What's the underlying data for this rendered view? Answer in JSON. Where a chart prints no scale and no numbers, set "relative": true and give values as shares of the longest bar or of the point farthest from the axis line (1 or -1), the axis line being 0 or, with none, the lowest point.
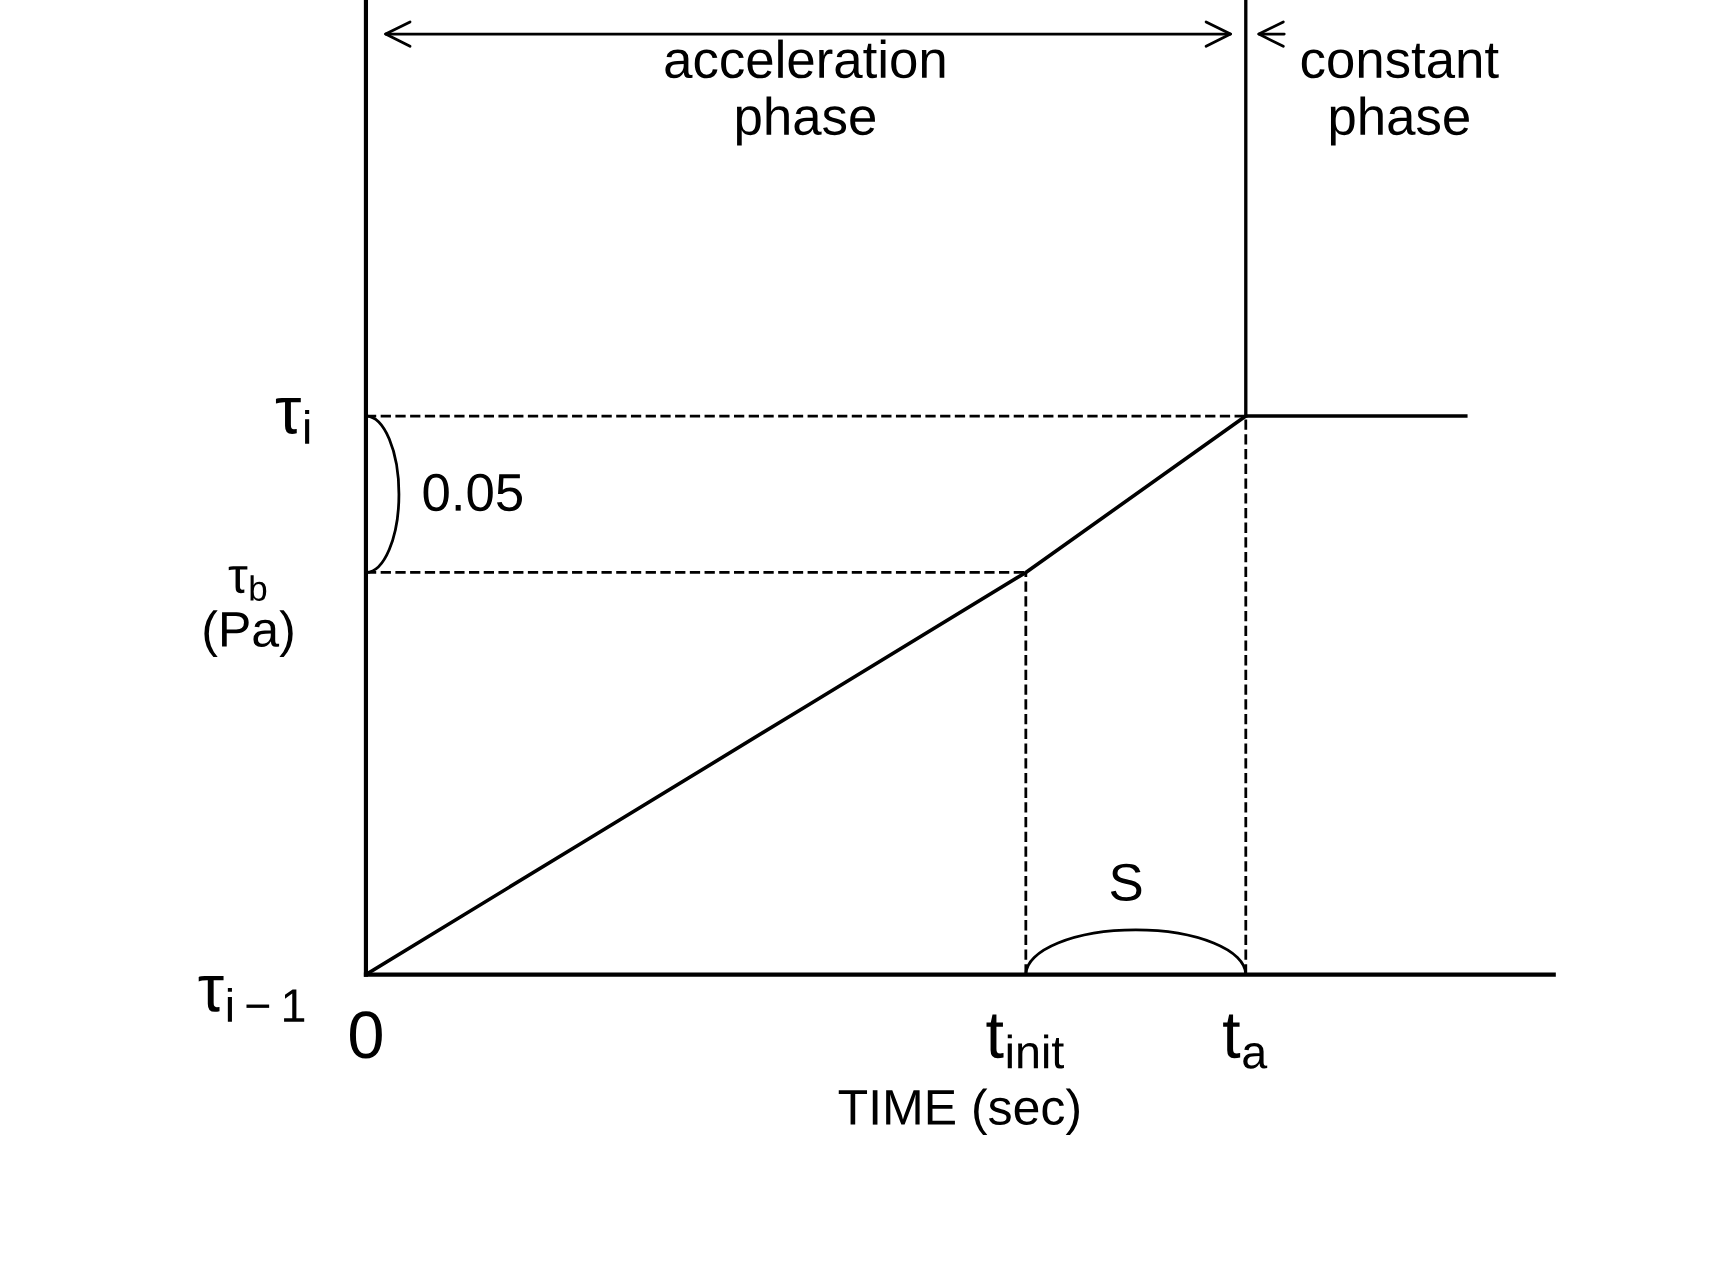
{
  "chart_data": {
    "type": "line",
    "relative": true,
    "xlabel": "TIME (sec)",
    "ylabel": "τ$_{b}$\n(Pa)",
    "categories": [
      "0",
      null,
      null,
      "t$_{init}$",
      "t$_{a}$",
      null
    ],
    "series": [
      {
        "color": "#000000",
        "values": [
          0,
          0.24,
          0.48,
          0.72,
          1,
          1
        ]
      }
    ],
    "ref_lines": [
      {
        "axis": "y",
        "value": 0.72,
        "line_style": "dashed",
        "color": "#000000"
      }
    ],
    "annotations": [
      "acceleration\nphase",
      "constant\nphase",
      "0.05",
      "S",
      "τ$_{i}$",
      "τ$_{i−1}$"
    ],
    "grid": "x",
    "marker": "none",
    "line_style": "solid"
  }
}
